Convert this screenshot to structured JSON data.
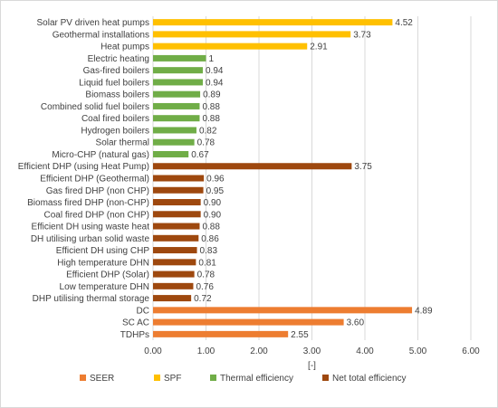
{
  "chart_data": {
    "type": "bar",
    "orientation": "horizontal",
    "xlabel": "[-]",
    "xlim": [
      0,
      6
    ],
    "xticks": [
      "0.00",
      "1.00",
      "2.00",
      "3.00",
      "4.00",
      "5.00",
      "6.00"
    ],
    "grid": true,
    "legend_position": "bottom",
    "series_colors": {
      "SEER": "#ed7d31",
      "SPF": "#ffc000",
      "Thermal efficiency": "#70ad47",
      "Net total efficiency": "#9e480e"
    },
    "bars": [
      {
        "category": "Solar PV driven heat pumps",
        "value": 4.52,
        "label": "4.52",
        "series": "SPF"
      },
      {
        "category": "Geothermal installations",
        "value": 3.73,
        "label": "3.73",
        "series": "SPF"
      },
      {
        "category": "Heat pumps",
        "value": 2.91,
        "label": "2.91",
        "series": "SPF"
      },
      {
        "category": "Electric heating",
        "value": 1,
        "label": "1",
        "series": "Thermal efficiency"
      },
      {
        "category": "Gas-fired boilers",
        "value": 0.94,
        "label": "0.94",
        "series": "Thermal efficiency"
      },
      {
        "category": "Liquid fuel boilers",
        "value": 0.94,
        "label": "0.94",
        "series": "Thermal efficiency"
      },
      {
        "category": "Biomass boilers",
        "value": 0.89,
        "label": "0.89",
        "series": "Thermal efficiency"
      },
      {
        "category": "Combined solid fuel boilers",
        "value": 0.88,
        "label": "0.88",
        "series": "Thermal efficiency"
      },
      {
        "category": "Coal fired boilers",
        "value": 0.88,
        "label": "0.88",
        "series": "Thermal efficiency"
      },
      {
        "category": "Hydrogen boilers",
        "value": 0.82,
        "label": "0.82",
        "series": "Thermal efficiency"
      },
      {
        "category": "Solar thermal",
        "value": 0.78,
        "label": "0.78",
        "series": "Thermal efficiency"
      },
      {
        "category": "Micro-CHP (natural gas)",
        "value": 0.67,
        "label": "0.67",
        "series": "Thermal efficiency"
      },
      {
        "category": "Efficient DHP (using Heat Pump)",
        "value": 3.75,
        "label": "3.75",
        "series": "Net total efficiency"
      },
      {
        "category": "Efficient DHP (Geothermal)",
        "value": 0.96,
        "label": "0.96",
        "series": "Net total efficiency"
      },
      {
        "category": "Gas fired DHP (non CHP)",
        "value": 0.95,
        "label": "0.95",
        "series": "Net total efficiency"
      },
      {
        "category": "Biomass fired DHP (non-CHP)",
        "value": 0.9,
        "label": "0.90",
        "series": "Net total efficiency"
      },
      {
        "category": "Coal fired DHP (non CHP)",
        "value": 0.9,
        "label": "0.90",
        "series": "Net total efficiency"
      },
      {
        "category": "Efficient DH using waste heat",
        "value": 0.88,
        "label": "0.88",
        "series": "Net total efficiency"
      },
      {
        "category": "DH utilising urban solid waste",
        "value": 0.86,
        "label": "0.86",
        "series": "Net total efficiency"
      },
      {
        "category": "Efficient DH using CHP",
        "value": 0.83,
        "label": "0.83",
        "series": "Net total efficiency"
      },
      {
        "category": "High temperature DHN",
        "value": 0.81,
        "label": "0.81",
        "series": "Net total efficiency"
      },
      {
        "category": "Efficient DHP (Solar)",
        "value": 0.78,
        "label": "0.78",
        "series": "Net total efficiency"
      },
      {
        "category": "Low temperature DHN",
        "value": 0.76,
        "label": "0.76",
        "series": "Net total efficiency"
      },
      {
        "category": "DHP utilising thermal storage",
        "value": 0.72,
        "label": "0.72",
        "series": "Net total efficiency"
      },
      {
        "category": "DC",
        "value": 4.89,
        "label": "4.89",
        "series": "SEER"
      },
      {
        "category": "SC AC",
        "value": 3.6,
        "label": "3.60",
        "series": "SEER"
      },
      {
        "category": "TDHPs",
        "value": 2.55,
        "label": "2.55",
        "series": "SEER"
      }
    ],
    "legend": [
      "SEER",
      "SPF",
      "Thermal efficiency",
      "Net total efficiency"
    ]
  }
}
